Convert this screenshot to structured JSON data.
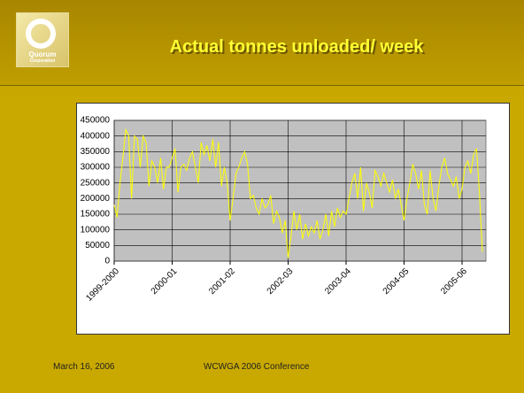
{
  "logo": {
    "name": "Quorum",
    "subtitle": "Corporation"
  },
  "title": "Actual tonnes unloaded/ week",
  "footer": {
    "date": "March 16, 2006",
    "conference": "WCWGA 2006 Conference"
  },
  "chart_data": {
    "type": "line",
    "color": "#ffff00",
    "grid": true,
    "ylim": [
      0,
      450000
    ],
    "yticks": [
      0,
      50000,
      100000,
      150000,
      200000,
      250000,
      300000,
      350000,
      400000,
      450000
    ],
    "categories": [
      "1999-2000",
      null,
      null,
      null,
      null,
      null,
      null,
      null,
      null,
      null,
      null,
      null,
      null,
      null,
      null,
      null,
      null,
      null,
      null,
      null,
      "2000-01",
      null,
      null,
      null,
      null,
      null,
      null,
      null,
      null,
      null,
      null,
      null,
      null,
      null,
      null,
      null,
      null,
      null,
      null,
      null,
      "2001-02",
      null,
      null,
      null,
      null,
      null,
      null,
      null,
      null,
      null,
      null,
      null,
      null,
      null,
      null,
      null,
      null,
      null,
      null,
      null,
      "2002-03",
      null,
      null,
      null,
      null,
      null,
      null,
      null,
      null,
      null,
      null,
      null,
      null,
      null,
      null,
      null,
      null,
      null,
      null,
      null,
      "2003-04",
      null,
      null,
      null,
      null,
      null,
      null,
      null,
      null,
      null,
      null,
      null,
      null,
      null,
      null,
      null,
      null,
      null,
      null,
      null,
      "2004-05",
      null,
      null,
      null,
      null,
      null,
      null,
      null,
      null,
      null,
      null,
      null,
      null,
      null,
      null,
      null,
      null,
      null,
      null,
      null,
      "2005-06",
      null,
      null,
      null,
      null,
      null,
      null,
      null
    ],
    "values": [
      180000,
      140000,
      250000,
      330000,
      420000,
      400000,
      200000,
      400000,
      390000,
      300000,
      400000,
      380000,
      240000,
      320000,
      300000,
      250000,
      330000,
      230000,
      300000,
      300000,
      330000,
      360000,
      220000,
      300000,
      310000,
      290000,
      330000,
      350000,
      300000,
      250000,
      380000,
      340000,
      370000,
      320000,
      390000,
      300000,
      380000,
      240000,
      300000,
      250000,
      130000,
      200000,
      280000,
      300000,
      330000,
      350000,
      310000,
      200000,
      210000,
      170000,
      150000,
      200000,
      170000,
      180000,
      210000,
      120000,
      160000,
      140000,
      90000,
      130000,
      10000,
      80000,
      160000,
      100000,
      150000,
      70000,
      120000,
      80000,
      110000,
      90000,
      130000,
      70000,
      100000,
      150000,
      80000,
      160000,
      110000,
      170000,
      140000,
      160000,
      150000,
      200000,
      250000,
      280000,
      200000,
      300000,
      160000,
      250000,
      220000,
      170000,
      290000,
      270000,
      240000,
      280000,
      250000,
      220000,
      260000,
      200000,
      230000,
      180000,
      130000,
      200000,
      250000,
      310000,
      280000,
      230000,
      290000,
      180000,
      150000,
      290000,
      200000,
      160000,
      240000,
      300000,
      330000,
      280000,
      260000,
      240000,
      270000,
      200000,
      230000,
      300000,
      320000,
      280000,
      340000,
      360000,
      220000,
      30000
    ]
  }
}
